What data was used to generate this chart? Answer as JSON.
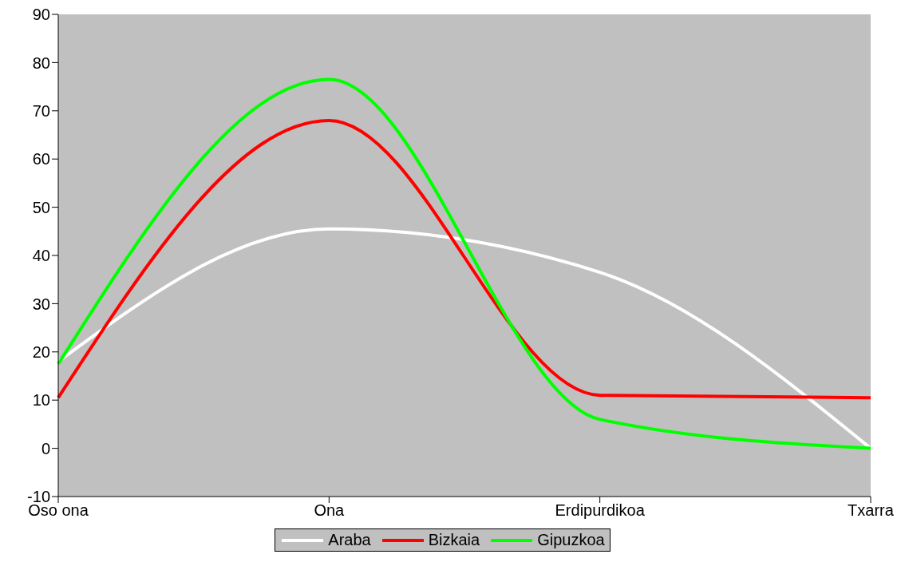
{
  "chart_data": {
    "type": "line",
    "categories": [
      "Oso ona",
      "Ona",
      "Erdipurdikoa",
      "Txarra"
    ],
    "series": [
      {
        "name": "Araba",
        "color": "#ffffff",
        "values": [
          18,
          45.5,
          36.5,
          0
        ]
      },
      {
        "name": "Bizkaia",
        "color": "#ff0000",
        "values": [
          10.5,
          68,
          11,
          10.5
        ]
      },
      {
        "name": "Gipuzkoa",
        "color": "#00ff00",
        "values": [
          17.5,
          76.5,
          6,
          0
        ]
      }
    ],
    "ylim": [
      -10,
      90
    ],
    "yticks": [
      -10,
      0,
      10,
      20,
      30,
      40,
      50,
      60,
      70,
      80,
      90
    ],
    "legend": "bottom",
    "marker": "none",
    "line_style": "solid"
  }
}
